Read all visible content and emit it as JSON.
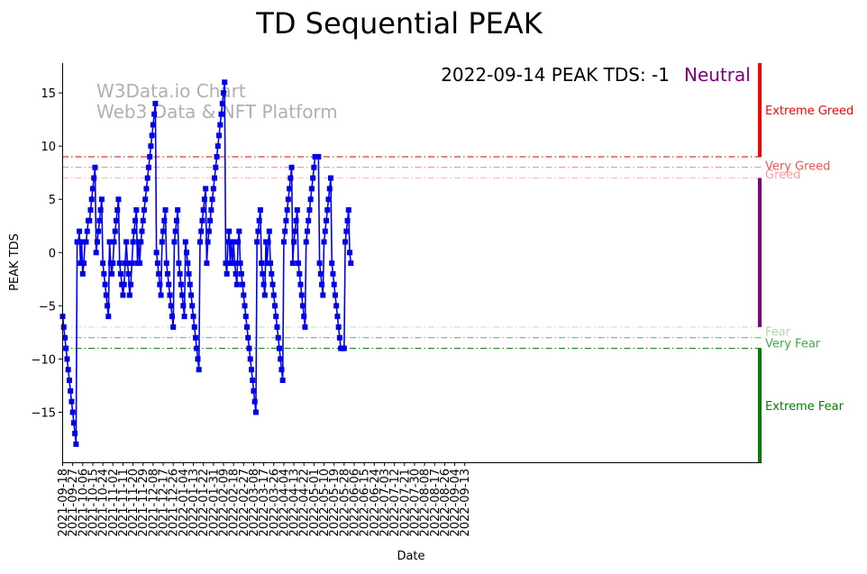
{
  "chart_data": {
    "type": "line",
    "title": "TD Sequential PEAK",
    "xlabel": "Date",
    "ylabel": "PEAK TDS",
    "ylim": [
      -19.7,
      17.8
    ],
    "y_ticks": [
      15,
      10,
      5,
      0,
      -5,
      -10,
      -15
    ],
    "x_tick_labels": [
      "2021-09-18",
      "2021-09-27",
      "2021-10-06",
      "2021-10-15",
      "2021-10-24",
      "2021-11-02",
      "2021-11-11",
      "2021-11-20",
      "2021-11-29",
      "2021-12-08",
      "2021-12-17",
      "2021-12-26",
      "2022-01-04",
      "2022-01-13",
      "2022-01-22",
      "2022-01-31",
      "2022-02-09",
      "2022-02-18",
      "2022-02-27",
      "2022-03-08",
      "2022-03-17",
      "2022-03-26",
      "2022-04-04",
      "2022-04-13",
      "2022-04-22",
      "2022-05-01",
      "2022-05-10",
      "2022-05-19",
      "2022-05-28",
      "2022-06-06",
      "2022-06-15",
      "2022-06-24",
      "2022-07-03",
      "2022-07-12",
      "2022-07-21",
      "2022-07-30",
      "2022-08-08",
      "2022-08-17",
      "2022-08-26",
      "2022-09-04",
      "2022-09-13"
    ],
    "x_start": "2021-09-18",
    "series": [
      {
        "color": "#0000ee",
        "marker": "square",
        "values": [
          -6,
          -7,
          -8,
          -9,
          -10,
          -11,
          -12,
          -13,
          -14,
          -15,
          -16,
          -17,
          -18,
          1,
          1,
          2,
          -1,
          1,
          -2,
          -1,
          1,
          1,
          2,
          3,
          3,
          4,
          5,
          6,
          7,
          8,
          0,
          1,
          2,
          3,
          4,
          5,
          -1,
          -2,
          -3,
          -4,
          -5,
          -6,
          1,
          -1,
          -2,
          -1,
          1,
          2,
          3,
          4,
          5,
          -1,
          -2,
          -3,
          -4,
          -3,
          -1,
          1,
          -1,
          -2,
          -4,
          -3,
          -1,
          1,
          2,
          3,
          4,
          -1,
          1,
          -1,
          1,
          2,
          3,
          4,
          5,
          6,
          7,
          8,
          9,
          10,
          11,
          12,
          13,
          14,
          0,
          -1,
          -2,
          -3,
          -4,
          1,
          2,
          3,
          4,
          -1,
          -2,
          -3,
          -4,
          -5,
          -6,
          -7,
          1,
          2,
          3,
          4,
          -1,
          -2,
          -3,
          -4,
          -5,
          -6,
          1,
          0,
          -1,
          -2,
          -3,
          -4,
          -5,
          -6,
          -7,
          -8,
          -9,
          -10,
          -11,
          1,
          2,
          3,
          4,
          5,
          6,
          -1,
          1,
          2,
          3,
          4,
          5,
          6,
          7,
          8,
          9,
          10,
          11,
          12,
          13,
          14,
          15,
          16,
          -1,
          -2,
          1,
          2,
          -1,
          1,
          -1,
          1,
          -1,
          -2,
          -3,
          1,
          2,
          -1,
          -2,
          -3,
          -4,
          -5,
          -6,
          -7,
          -8,
          -9,
          -10,
          -11,
          -12,
          -13,
          -14,
          -15,
          1,
          2,
          3,
          4,
          -1,
          -2,
          -3,
          -4,
          1,
          -1,
          1,
          2,
          -1,
          -2,
          -3,
          -4,
          -5,
          -6,
          -7,
          -8,
          -9,
          -10,
          -11,
          -12,
          1,
          2,
          3,
          4,
          5,
          6,
          7,
          8,
          -1,
          1,
          2,
          3,
          4,
          -1,
          -2,
          -3,
          -4,
          -5,
          -6,
          -7,
          1,
          2,
          3,
          4,
          5,
          6,
          7,
          8,
          9,
          9,
          9,
          9,
          -1,
          -2,
          -3,
          -4,
          1,
          2,
          3,
          4,
          5,
          6,
          7,
          -1,
          -2,
          -3,
          -4,
          -5,
          -6,
          -7,
          -8,
          -9,
          -9,
          -9,
          -9,
          1,
          2,
          3,
          4,
          0,
          -1
        ]
      }
    ],
    "reference_lines": [
      {
        "y": 9,
        "color": "#dd0000",
        "style": "dash-dot"
      },
      {
        "y": 8,
        "color": "#f08080",
        "style": "dash-dot"
      },
      {
        "y": 7,
        "color": "#ffb0b0",
        "style": "dash-dot"
      },
      {
        "y": -7,
        "color": "#bbe6bb",
        "style": "dash-dot"
      },
      {
        "y": -8,
        "color": "#55b055",
        "style": "dash-dot"
      },
      {
        "y": -9,
        "color": "#007000",
        "style": "dash-dot"
      }
    ],
    "zones": [
      {
        "label": "Extreme Greed",
        "y_from": 9,
        "y_to": 17.8,
        "color": "#ff0000"
      },
      {
        "label": "Very Greed",
        "y": 8.2,
        "color": "#f05555"
      },
      {
        "label": "Greed",
        "y": 7.4,
        "color": "#ff9999"
      },
      {
        "label": "Fear",
        "y": -7.4,
        "color": "#aaddaa"
      },
      {
        "label": "Very Fear",
        "y": -8.5,
        "color": "#44aa44"
      },
      {
        "label": "Extreme Fear",
        "y_from": -19.7,
        "y_to": -9,
        "color": "#008000"
      }
    ],
    "neutral_band": {
      "y_from": -7,
      "y_to": 7,
      "color": "#800080"
    },
    "status_text": "2022-09-14 PEAK TDS: -1",
    "status_label": "Neutral",
    "status_color": "#800080",
    "watermark_line1": "W3Data.io Chart",
    "watermark_line2": "Web3 Data & NFT Platform"
  }
}
